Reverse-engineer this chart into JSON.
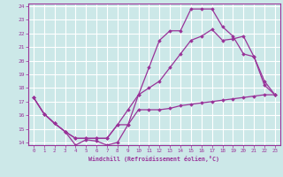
{
  "xlabel": "Windchill (Refroidissement éolien,°C)",
  "bg_color": "#cce8e8",
  "grid_color": "#ffffff",
  "line_color": "#993399",
  "xlim": [
    -0.5,
    23.5
  ],
  "ylim": [
    13.8,
    24.2
  ],
  "yticks": [
    14,
    15,
    16,
    17,
    18,
    19,
    20,
    21,
    22,
    23,
    24
  ],
  "xticks": [
    0,
    1,
    2,
    3,
    4,
    5,
    6,
    7,
    8,
    9,
    10,
    11,
    12,
    13,
    14,
    15,
    16,
    17,
    18,
    19,
    20,
    21,
    22,
    23
  ],
  "line1_x": [
    0,
    1,
    2,
    3,
    4,
    5,
    6,
    7,
    8,
    9,
    10,
    11,
    12,
    13,
    14,
    15,
    16,
    17,
    18,
    19,
    20,
    21,
    22,
    23
  ],
  "line1_y": [
    17.3,
    16.1,
    15.4,
    14.8,
    13.8,
    14.2,
    14.1,
    13.8,
    14.0,
    15.3,
    16.4,
    16.4,
    16.4,
    16.5,
    16.7,
    16.8,
    16.9,
    17.0,
    17.1,
    17.2,
    17.3,
    17.4,
    17.5,
    17.5
  ],
  "line2_x": [
    0,
    1,
    2,
    3,
    4,
    5,
    6,
    7,
    8,
    9,
    10,
    11,
    12,
    13,
    14,
    15,
    16,
    17,
    18,
    19,
    20,
    21,
    22,
    23
  ],
  "line2_y": [
    17.3,
    16.1,
    15.4,
    14.8,
    14.3,
    14.3,
    14.3,
    14.3,
    15.3,
    15.3,
    17.5,
    19.5,
    21.5,
    22.2,
    22.2,
    23.8,
    23.8,
    23.8,
    22.5,
    21.8,
    20.5,
    20.3,
    18.2,
    17.5
  ],
  "line3_x": [
    0,
    1,
    2,
    3,
    4,
    5,
    6,
    7,
    8,
    9,
    10,
    11,
    12,
    13,
    14,
    15,
    16,
    17,
    18,
    19,
    20,
    21,
    22,
    23
  ],
  "line3_y": [
    17.3,
    16.1,
    15.4,
    14.8,
    14.3,
    14.3,
    14.3,
    14.3,
    15.3,
    16.4,
    17.5,
    18.0,
    18.5,
    19.5,
    20.5,
    21.5,
    21.8,
    22.3,
    21.5,
    21.6,
    21.8,
    20.3,
    18.5,
    17.5
  ]
}
